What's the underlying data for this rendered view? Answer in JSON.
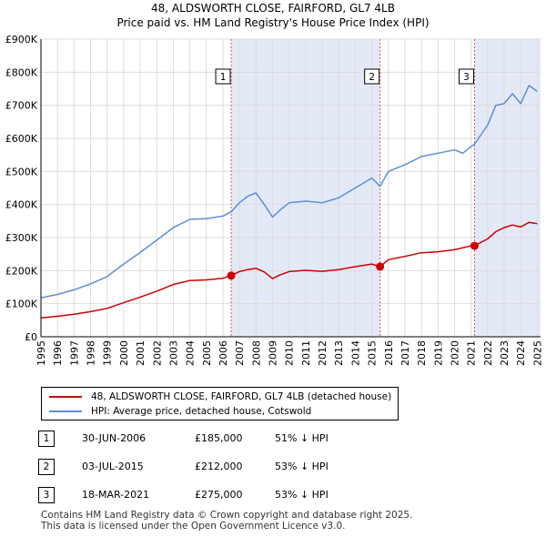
{
  "title_line1": "48, ALDSWORTH CLOSE, FAIRFORD, GL7 4LB",
  "title_line2": "Price paid vs. HM Land Registry's House Price Index (HPI)",
  "chart_data": {
    "type": "line",
    "title": "48, ALDSWORTH CLOSE, FAIRFORD, GL7 4LB — Price paid vs. HM Land Registry's House Price Index (HPI)",
    "xlim": [
      1995,
      2025.2
    ],
    "ylim": [
      0,
      900000
    ],
    "y_ticks": [
      {
        "value": 0,
        "label": "£0"
      },
      {
        "value": 100000,
        "label": "£100K"
      },
      {
        "value": 200000,
        "label": "£200K"
      },
      {
        "value": 300000,
        "label": "£300K"
      },
      {
        "value": 400000,
        "label": "£400K"
      },
      {
        "value": 500000,
        "label": "£500K"
      },
      {
        "value": 600000,
        "label": "£600K"
      },
      {
        "value": 700000,
        "label": "£700K"
      },
      {
        "value": 800000,
        "label": "£800K"
      },
      {
        "value": 900000,
        "label": "£900K"
      }
    ],
    "x_ticks": [
      1995,
      1996,
      1997,
      1998,
      1999,
      2000,
      2001,
      2002,
      2003,
      2004,
      2005,
      2006,
      2007,
      2008,
      2009,
      2010,
      2011,
      2012,
      2013,
      2014,
      2015,
      2016,
      2017,
      2018,
      2019,
      2020,
      2021,
      2022,
      2023,
      2024,
      2025
    ],
    "series": [
      {
        "name": "48, ALDSWORTH CLOSE, FAIRFORD, GL7 4LB (detached house)",
        "color": "#cc0000",
        "x": [
          1995,
          1996,
          1997,
          1998,
          1999,
          2000,
          2001,
          2002,
          2003,
          2004,
          2005,
          2006,
          2006.5,
          2007,
          2007.5,
          2008,
          2008.5,
          2009,
          2009.5,
          2010,
          2011,
          2012,
          2013,
          2014,
          2015,
          2015.5,
          2016,
          2017,
          2018,
          2019,
          2020,
          2021,
          2021.2,
          2022,
          2022.5,
          2023,
          2023.5,
          2024,
          2024.5,
          2025
        ],
        "values": [
          57000,
          62000,
          68000,
          76000,
          86000,
          103000,
          120000,
          138000,
          158000,
          170000,
          172000,
          177000,
          185000,
          197000,
          203000,
          207000,
          196000,
          176000,
          188000,
          197000,
          201000,
          198000,
          203000,
          212000,
          220000,
          212000,
          233000,
          243000,
          254000,
          257000,
          263000,
          275000,
          275000,
          296000,
          318000,
          330000,
          338000,
          332000,
          346000,
          342000
        ]
      },
      {
        "name": "HPI: Average price, detached house, Cotswold",
        "color": "#5b8fd6",
        "x": [
          1995,
          1996,
          1997,
          1998,
          1999,
          2000,
          2001,
          2002,
          2003,
          2004,
          2005,
          2006,
          2006.5,
          2007,
          2007.5,
          2008,
          2008.5,
          2009,
          2009.5,
          2010,
          2011,
          2012,
          2013,
          2014,
          2015,
          2015.5,
          2016,
          2017,
          2018,
          2019,
          2020,
          2020.5,
          2021,
          2021.2,
          2022,
          2022.5,
          2023,
          2023.5,
          2024,
          2024.5,
          2025
        ],
        "values": [
          118000,
          128000,
          142000,
          160000,
          182000,
          220000,
          255000,
          292000,
          330000,
          355000,
          357000,
          365000,
          378000,
          405000,
          425000,
          435000,
          400000,
          362000,
          385000,
          405000,
          410000,
          405000,
          420000,
          450000,
          480000,
          455000,
          500000,
          520000,
          545000,
          555000,
          565000,
          555000,
          575000,
          582000,
          640000,
          700000,
          705000,
          735000,
          705000,
          760000,
          742000
        ]
      }
    ],
    "sale_markers": [
      {
        "label": "1",
        "x": 2006.5,
        "value": 185000
      },
      {
        "label": "2",
        "x": 2015.5,
        "value": 212000
      },
      {
        "label": "3",
        "x": 2021.21,
        "value": 275000
      }
    ],
    "shaded_regions": [
      [
        2006.5,
        2015.5
      ],
      [
        2021.21,
        2025.2
      ]
    ]
  },
  "legend": {
    "property_label": "48, ALDSWORTH CLOSE, FAIRFORD, GL7 4LB (detached house)",
    "hpi_label": "HPI: Average price, detached house, Cotswold"
  },
  "sales": [
    {
      "num": "1",
      "date": "30-JUN-2006",
      "price": "£185,000",
      "hpi": "51% ↓ HPI"
    },
    {
      "num": "2",
      "date": "03-JUL-2015",
      "price": "£212,000",
      "hpi": "53% ↓ HPI"
    },
    {
      "num": "3",
      "date": "18-MAR-2021",
      "price": "£275,000",
      "hpi": "53% ↓ HPI"
    }
  ],
  "footer": {
    "line1": "Contains HM Land Registry data © Crown copyright and database right 2025.",
    "line2": "This data is licensed under the Open Government Licence v3.0."
  }
}
